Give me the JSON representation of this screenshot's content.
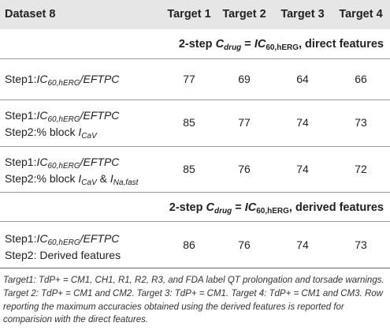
{
  "header": {
    "col0": "Dataset 8",
    "target1": "Target 1",
    "target2": "Target 2",
    "target3": "Target 3",
    "target4": "Target 4"
  },
  "section1": {
    "prefix": "2-step ",
    "c": "C",
    "c_sub": "drug",
    "eq": " = ",
    "ic": "IC",
    "ic_sub": "60,hERG",
    "suffix": ", direct features"
  },
  "section2": {
    "prefix": "2-step ",
    "c": "C",
    "c_sub": "drug",
    "eq": " = ",
    "ic": "IC",
    "ic_sub": "60,hERG",
    "suffix": ", derived features"
  },
  "rows": [
    {
      "step1_prefix": "Step1:",
      "step1_ic": "IC",
      "step1_sub": "60,hERG",
      "step1_rest": "/EFTPC",
      "values": [
        "77",
        "69",
        "64",
        "66"
      ]
    },
    {
      "step1_prefix": "Step1:",
      "step1_ic": "IC",
      "step1_sub": "60,hERG",
      "step1_rest": "/EFTPC",
      "step2_prefix": "Step2:% block ",
      "step2_i": "I",
      "step2_sub": "CaV",
      "values": [
        "85",
        "77",
        "74",
        "73"
      ]
    },
    {
      "step1_prefix": "Step1:",
      "step1_ic": "IC",
      "step1_sub": "60,hERG",
      "step1_rest": "/EFTPC",
      "step2_prefix": "Step2:% block ",
      "step2_i": "I",
      "step2_sub": "CaV",
      "step2_amp": " & ",
      "step2_i2": "I",
      "step2_sub2": "Na,fast",
      "values": [
        "85",
        "76",
        "74",
        "72"
      ]
    },
    {
      "step1_prefix": "Step1:",
      "step1_ic": "IC",
      "step1_sub": "60,hERG",
      "step1_rest": "/EFTPC",
      "step2_text": "Step2: Derived features",
      "values": [
        "86",
        "76",
        "74",
        "73"
      ]
    }
  ],
  "footnote": "Target1: TdP+ = CM1, CH1, R1, R2, R3, and FDA label QT prolongation and torsade warnings. Target 2: TdP+ = CM1 and CM2. Target 3: TdP+ = CM1. Target 4: TdP+ = CM1 and CM3. Row reporting the maximum accuracies obtained using the derived features is reported for comparision with the direct features."
}
